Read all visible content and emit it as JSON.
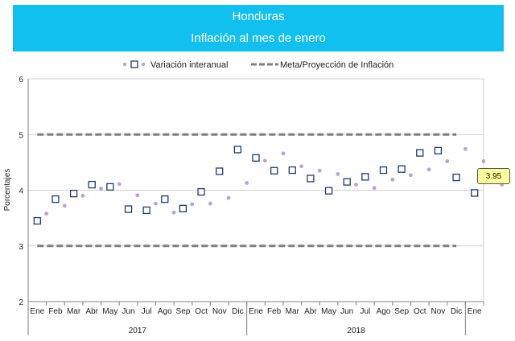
{
  "header": {
    "title": "Honduras",
    "subtitle": "Inflación al mes de enero",
    "background_color": "#12c0f0"
  },
  "callout": {
    "label": "3.95",
    "value": 3.95
  },
  "chart_data": {
    "type": "line",
    "ylabel": "Porcentajes",
    "ylim": [
      2,
      6
    ],
    "yticks": [
      2,
      3,
      4,
      5,
      6
    ],
    "grid": true,
    "legend_position": "top",
    "categories": [
      "Ene",
      "Feb",
      "Mar",
      "Abr",
      "May",
      "Jun",
      "Jul",
      "Ago",
      "Sep",
      "Oct",
      "Nov",
      "Dic",
      "Ene",
      "Feb",
      "Mar",
      "Abr",
      "May",
      "Jun",
      "Jul",
      "Ago",
      "Sep",
      "Oct",
      "Nov",
      "Dic",
      "Ene"
    ],
    "year_groups": [
      {
        "label": "2017",
        "start": 0,
        "end": 11
      },
      {
        "label": "2018",
        "start": 12,
        "end": 23
      }
    ],
    "series": [
      {
        "name": "Variación interanual",
        "color": "#1f3a6e",
        "dot_color": "#b9a3d4",
        "values": [
          3.45,
          3.84,
          3.94,
          4.1,
          4.06,
          3.66,
          3.64,
          3.84,
          3.67,
          3.97,
          4.34,
          4.73,
          4.58,
          4.35,
          4.36,
          4.21,
          3.99,
          4.15,
          4.24,
          4.36,
          4.38,
          4.67,
          4.71,
          4.23,
          3.95
        ],
        "intermediate_values": [
          3.58,
          3.72,
          3.9,
          4.03,
          4.11,
          3.91,
          3.76,
          3.6,
          3.75,
          3.76,
          3.86,
          4.13,
          4.53,
          4.66,
          4.43,
          4.35,
          4.29,
          4.1,
          4.04,
          4.19,
          4.27,
          4.37,
          4.52,
          4.74,
          4.52,
          4.1
        ]
      },
      {
        "name": "Meta/Proyección de Inflación",
        "color": "#7f7f7f",
        "dash": true,
        "upper": 5,
        "lower": 3,
        "x_range": [
          0,
          23
        ]
      }
    ]
  }
}
